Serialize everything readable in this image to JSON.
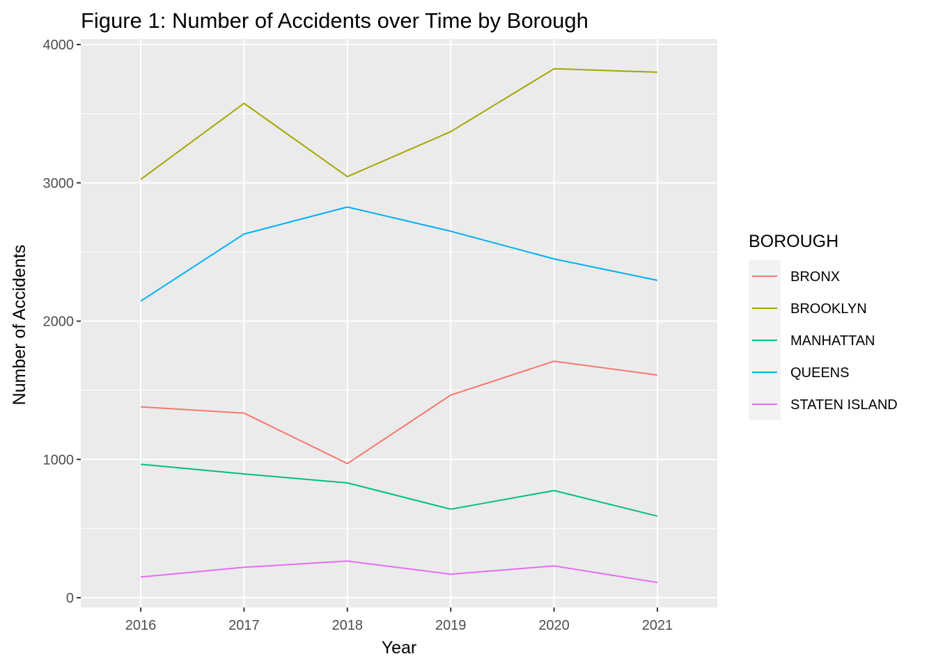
{
  "chart_data": {
    "type": "line",
    "title": "Figure 1: Number of Accidents over Time by Borough",
    "xlabel": "Year",
    "ylabel": "Number of Accidents",
    "x": [
      2016,
      2017,
      2018,
      2019,
      2020,
      2021
    ],
    "x_tick_labels": [
      "2016",
      "2017",
      "2018",
      "2019",
      "2020",
      "2021"
    ],
    "xlim": [
      2015.42,
      2021.58
    ],
    "y_ticks": [
      0,
      1000,
      2000,
      3000,
      4000
    ],
    "y_tick_labels": [
      "0",
      "1000",
      "2000",
      "3000",
      "4000"
    ],
    "ylim": [
      -70,
      4000
    ],
    "grid": true,
    "legend": {
      "title": "BOROUGH",
      "placement": "right"
    },
    "colors": {
      "panel_background": "#ebebeb",
      "grid": "#ffffff",
      "tick": "#333333"
    },
    "series": [
      {
        "name": "BRONX",
        "color": "#F8766D",
        "values": [
          1380,
          1335,
          970,
          1465,
          1710,
          1610
        ]
      },
      {
        "name": "BROOKLYN",
        "color": "#A3A500",
        "values": [
          3025,
          3575,
          3045,
          3370,
          3825,
          3800
        ]
      },
      {
        "name": "MANHATTAN",
        "color": "#00BF7D",
        "values": [
          965,
          895,
          830,
          640,
          775,
          590
        ]
      },
      {
        "name": "QUEENS",
        "color": "#00B0F6",
        "values": [
          2145,
          2630,
          2825,
          2650,
          2450,
          2295
        ]
      },
      {
        "name": "STATEN ISLAND",
        "color": "#E76BF3",
        "values": [
          150,
          220,
          265,
          170,
          230,
          110
        ]
      }
    ]
  }
}
